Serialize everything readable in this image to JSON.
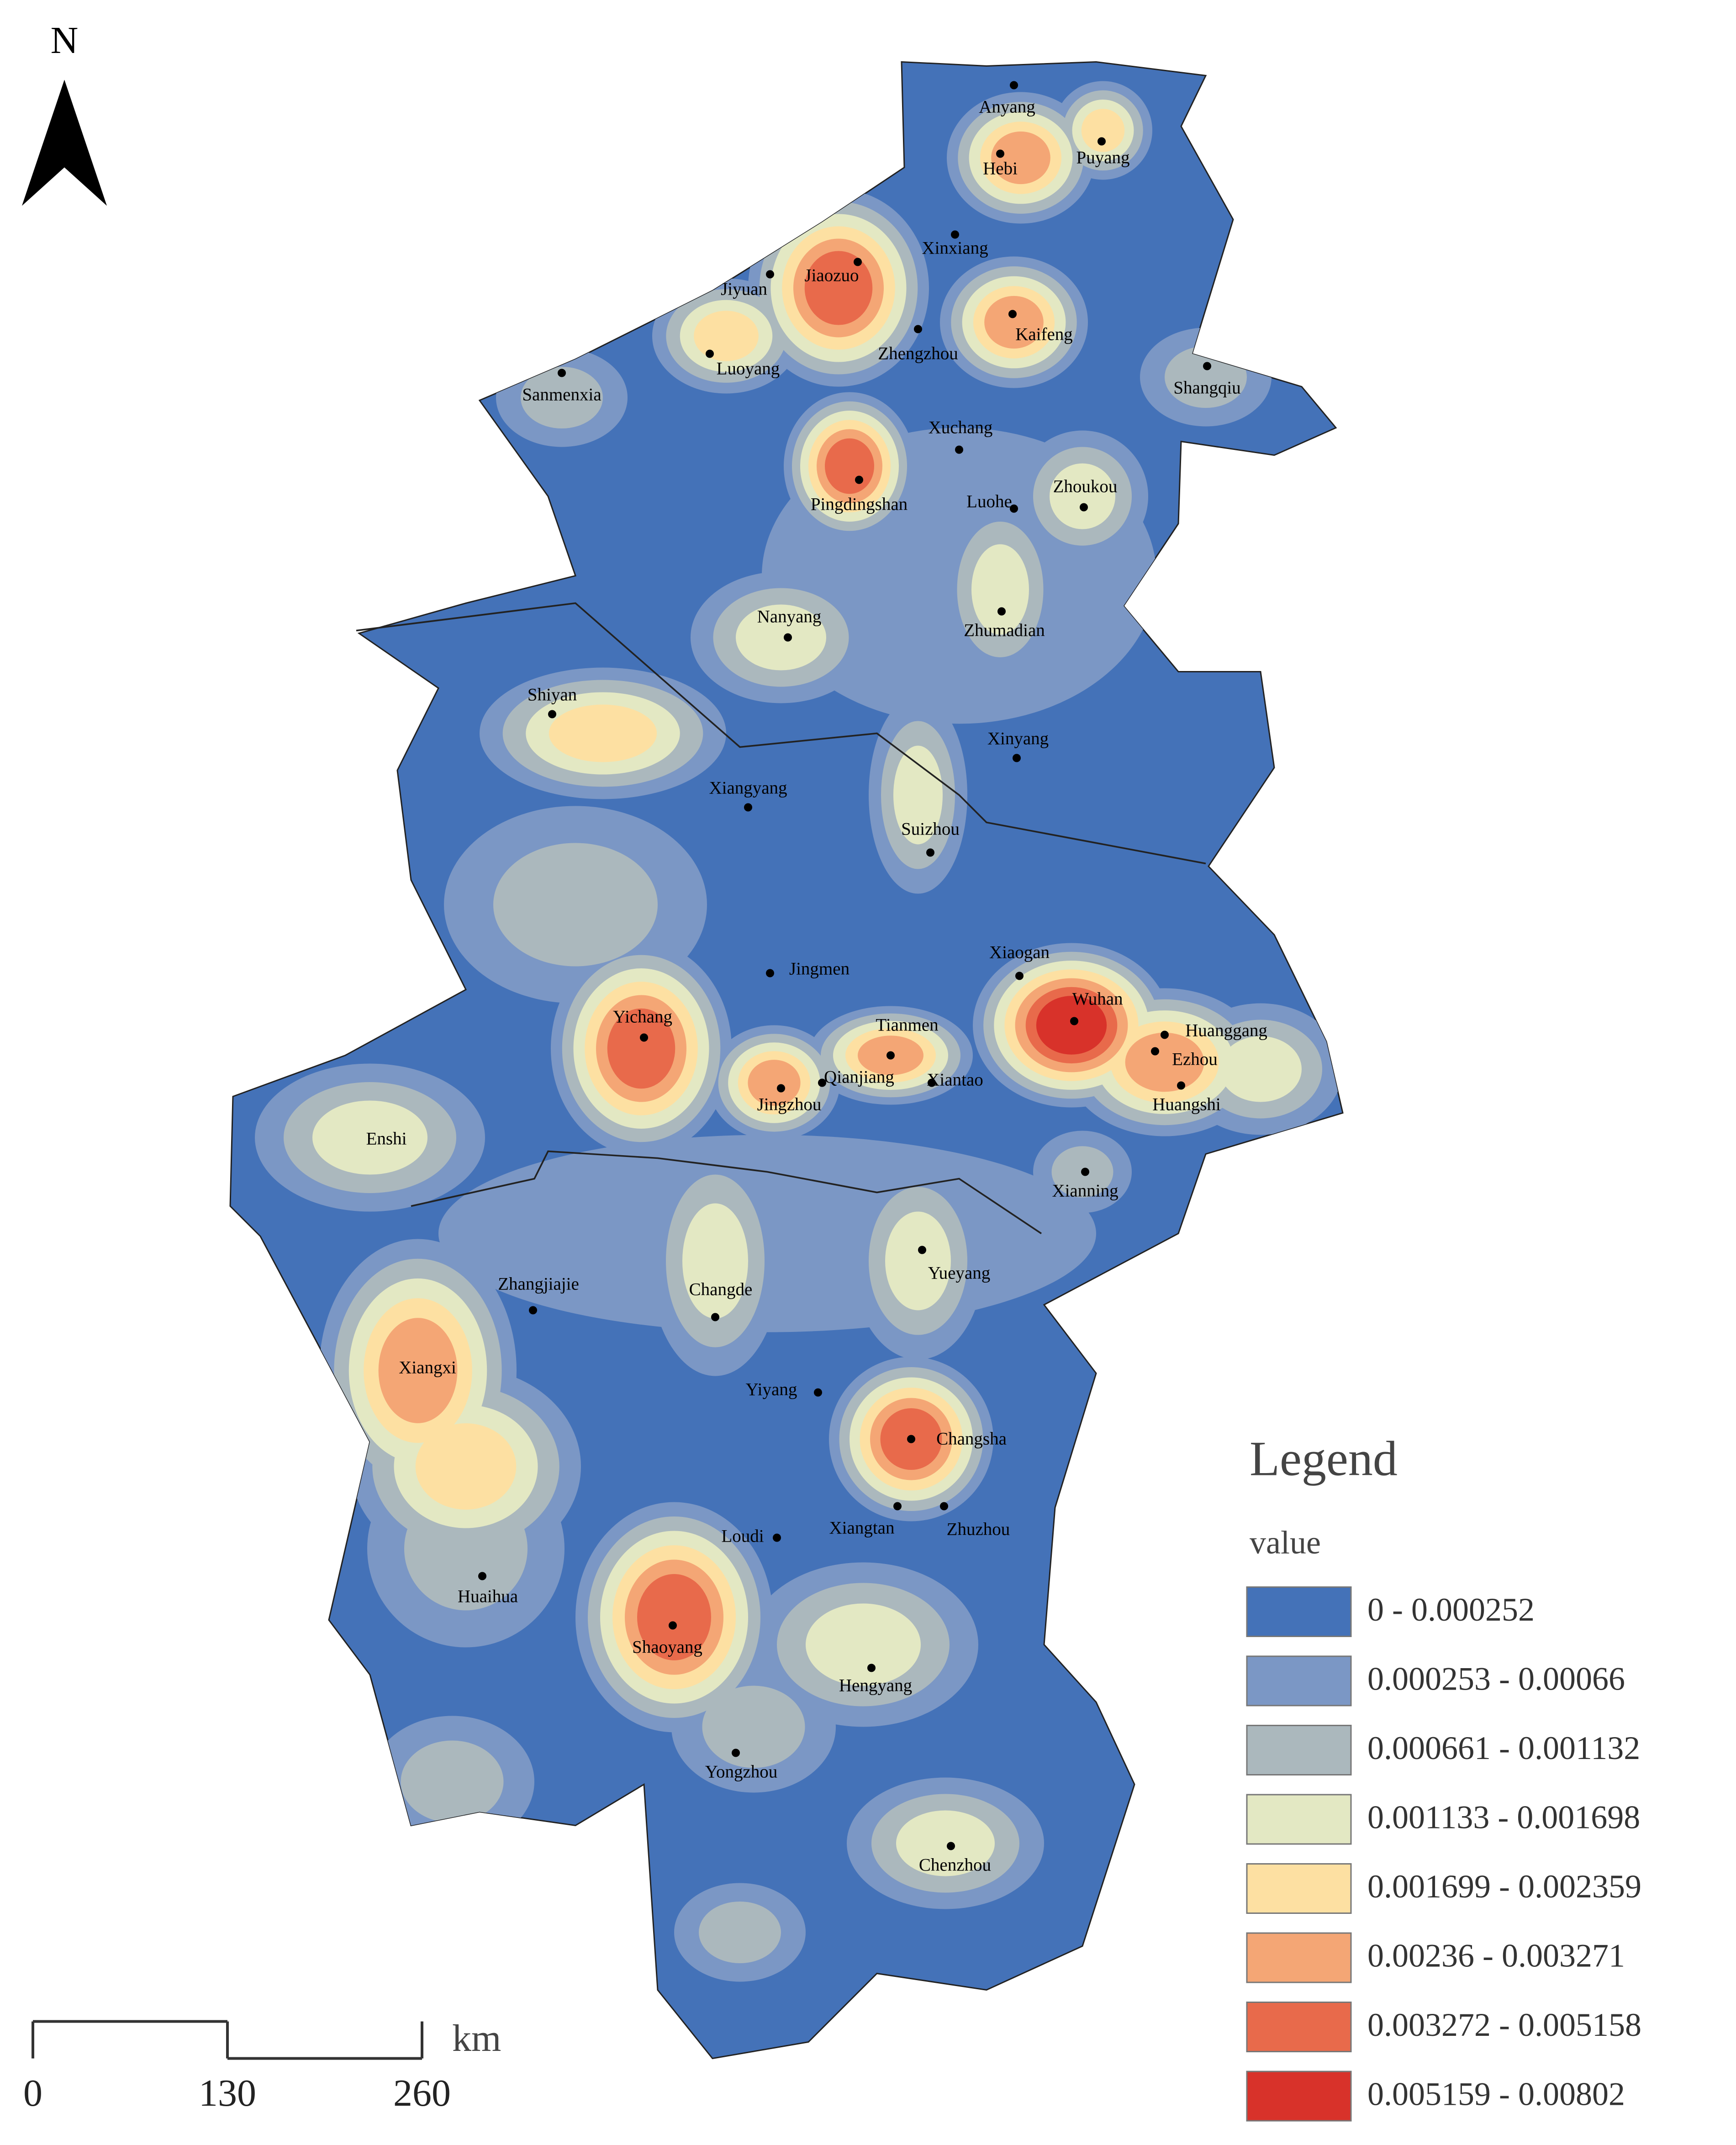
{
  "north": "N",
  "legend": {
    "title": "Legend",
    "field": "value",
    "items": [
      {
        "label": "0 - 0.000252",
        "color": "#4472b8"
      },
      {
        "label": "0.000253 - 0.00066",
        "color": "#7b97c5"
      },
      {
        "label": "0.000661 - 0.001132",
        "color": "#abb8bd"
      },
      {
        "label": "0.001133 - 0.001698",
        "color": "#e3e8c3"
      },
      {
        "label": "0.001699 - 0.002359",
        "color": "#fde0a2"
      },
      {
        "label": "0.00236 - 0.003271",
        "color": "#f4a675"
      },
      {
        "label": "0.003272 - 0.005158",
        "color": "#e86a4b"
      },
      {
        "label": "0.005159 - 0.00802",
        "color": "#d8322a"
      }
    ]
  },
  "scale": {
    "ticks": [
      0,
      130,
      260
    ],
    "unit": "km"
  },
  "cities": [
    "Anyang",
    "Hebi",
    "Puyang",
    "Xinxiang",
    "Jiaozuo",
    "Jiyuan",
    "Kaifeng",
    "Zhengzhou",
    "Luoyang",
    "Sanmenxia",
    "Shangqiu",
    "Xuchang",
    "Pingdingshan",
    "Zhoukou",
    "Luohe",
    "Zhumadian",
    "Nanyang",
    "Shiyan",
    "Xinyang",
    "Xiangyang",
    "Suizhou",
    "Jingmen",
    "Xiaogan",
    "Wuhan",
    "Huanggang",
    "Ezhou",
    "Huangshi",
    "Yichang",
    "Tianmen",
    "Qianjiang",
    "Xiantao",
    "Jingzhou",
    "Enshi",
    "Xianning",
    "Yueyang",
    "Zhangjiajie",
    "Changde",
    "Xiangxi",
    "Yiyang",
    "Changsha",
    "Loudi",
    "Xiangtan",
    "Zhuzhou",
    "Huaihua",
    "Shaoyang",
    "Hengyang",
    "Yongzhou",
    "Chenzhou"
  ]
}
